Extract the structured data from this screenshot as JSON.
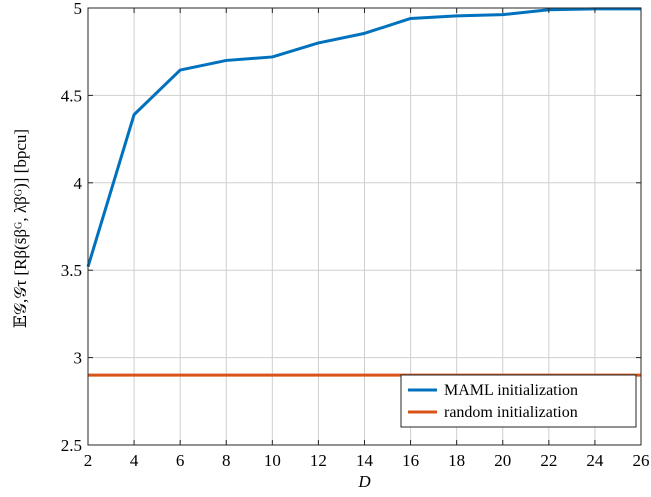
{
  "chart_data": {
    "type": "line",
    "xlabel": "D",
    "ylabel": "𝔼𝒢,𝒢τ [Rβ(s̄βᴳ, λ̄βᴳ)]  [bpcu]",
    "xlim": [
      2,
      26
    ],
    "ylim": [
      2.5,
      5
    ],
    "xticks": [
      2,
      4,
      6,
      8,
      10,
      12,
      14,
      16,
      18,
      20,
      22,
      24,
      26
    ],
    "yticks": [
      2.5,
      3,
      3.5,
      4,
      4.5,
      5
    ],
    "ytick_labels": [
      "2.5",
      "3",
      "3.5",
      "4",
      "4.5",
      "5"
    ],
    "grid": true,
    "legend_position": "bottom-right",
    "series": [
      {
        "name": "MAML initialization",
        "color": "#0072BD",
        "x": [
          2,
          4,
          6,
          8,
          10,
          12,
          14,
          16,
          18,
          20,
          22,
          24,
          26
        ],
        "y": [
          3.52,
          4.39,
          4.645,
          4.7,
          4.72,
          4.8,
          4.855,
          4.94,
          4.955,
          4.962,
          4.99,
          4.995,
          4.995
        ]
      },
      {
        "name": "random initialization",
        "color": "#D95319",
        "x": [
          2,
          26
        ],
        "y": [
          2.9,
          2.9
        ]
      }
    ]
  }
}
